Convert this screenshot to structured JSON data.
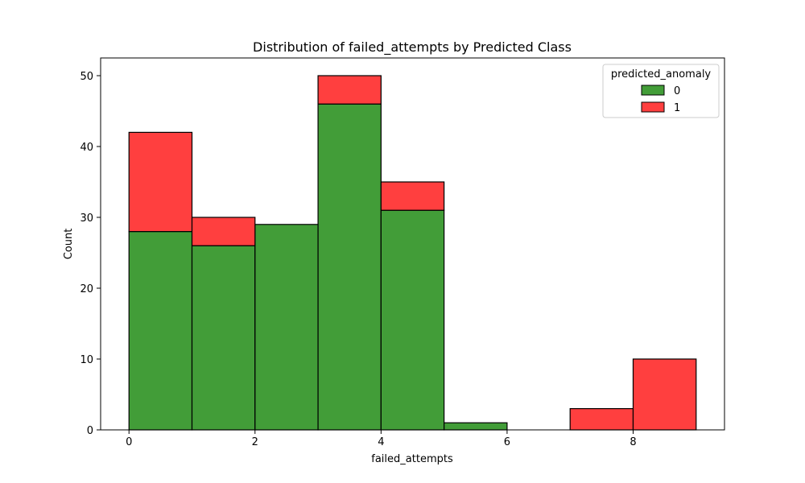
{
  "chart_data": {
    "type": "bar",
    "title": "Distribution of failed_attempts by Predicted Class",
    "xlabel": "failed_attempts",
    "ylabel": "Count",
    "xlim": [
      -0.45,
      9.45
    ],
    "ylim": [
      0,
      52.5
    ],
    "xticks": [
      0,
      2,
      4,
      6,
      8
    ],
    "yticks": [
      0,
      10,
      20,
      30,
      40,
      50
    ],
    "bin_edges": [
      0,
      1,
      2,
      3,
      4,
      5,
      6,
      7,
      8,
      9
    ],
    "stacked": true,
    "grid": false,
    "legend": {
      "title": "predicted_anomaly",
      "placement": "top-right"
    },
    "series": [
      {
        "name": "0",
        "color": "#2e9222",
        "values": [
          28,
          26,
          29,
          46,
          31,
          1,
          0,
          0,
          0
        ]
      },
      {
        "name": "1",
        "color": "#ff2a2a",
        "values": [
          14,
          4,
          0,
          4,
          4,
          0,
          0,
          3,
          10
        ]
      }
    ]
  }
}
